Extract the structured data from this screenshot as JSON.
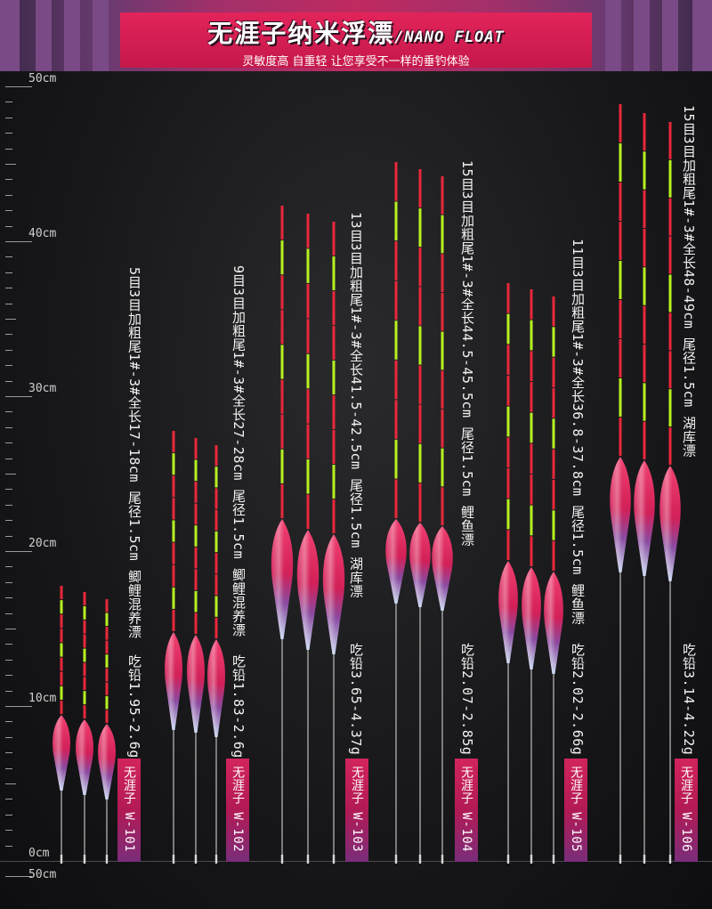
{
  "header": {
    "title_cn": "无涯子纳米浮漂",
    "title_en": "/NANO FLOAT",
    "subtitle": "灵敏度高 自重轻 让您享受不一样的垂钓体验"
  },
  "ruler": {
    "labels": [
      "50cm",
      "40cm",
      "30cm",
      "20cm",
      "10cm",
      "0cm",
      "50cm"
    ]
  },
  "products": [
    {
      "model": "无涯子 W-101",
      "spec": "5目3目加粗尾1#-3#全长17-18cm 尾径1.5cm 鲫鲤混养漂",
      "lead": "吃铅1.95-2.6g"
    },
    {
      "model": "无涯子 W-102",
      "spec": "9目3目加粗尾1#-3#全长27-28cm 尾径1.5cm 鲫鲤混养漂",
      "lead": "吃铅1.83-2.6g"
    },
    {
      "model": "无涯子 W-103",
      "spec": "13目3目加粗尾1#-3#全长41.5-42.5cm 尾径1.5cm 湖库漂",
      "lead": "吃铅3.65-4.37g"
    },
    {
      "model": "无涯子 W-104",
      "spec": "15目3目加粗尾1#-3#全长44.5-45.5cm 尾径1.5cm 鲤鱼漂",
      "lead": "吃铅2.07-2.85g"
    },
    {
      "model": "无涯子 W-105",
      "spec": "11目3目加粗尾1#-3#全长36.8-37.8cm 尾径1.5cm 鲤鱼漂",
      "lead": "吃铅2.02-2.66g"
    },
    {
      "model": "无涯子 W-106",
      "spec": "15目3目加粗尾1#-3#全长48-49cm 尾径1.5cm 湖库漂",
      "lead": "吃铅3.14-4.22g"
    }
  ],
  "colors": {
    "accent": "#d2245c",
    "segment_red": "#e8283a",
    "segment_green": "#b8f020",
    "body_pink": "#e0306a",
    "body_blue": "#4a60c0"
  },
  "icons": [
    "float-icon"
  ]
}
